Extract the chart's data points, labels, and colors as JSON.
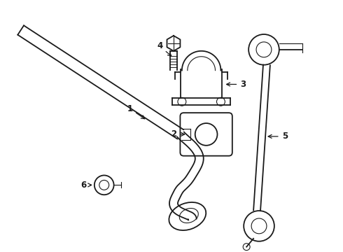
{
  "bg_color": "#ffffff",
  "line_color": "#1a1a1a",
  "fig_width": 4.9,
  "fig_height": 3.6,
  "dpi": 100,
  "lw_main": 1.3,
  "lw_thin": 0.8,
  "label_fontsize": 8.5
}
